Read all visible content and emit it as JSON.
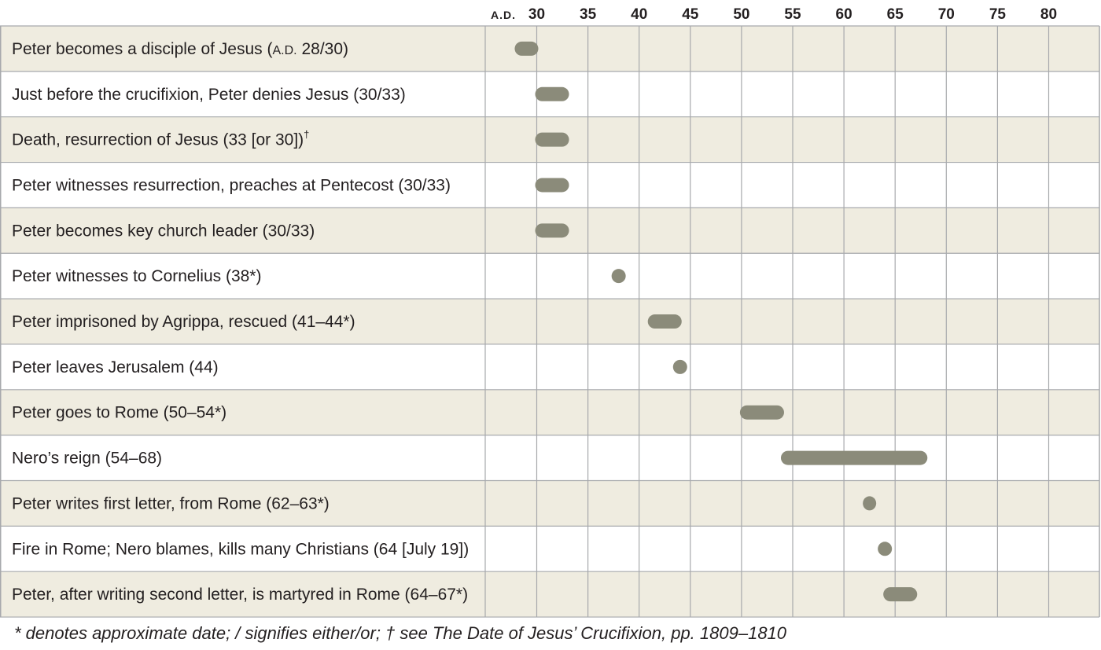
{
  "colors": {
    "shaded_row": "#efece0",
    "plain_row": "#ffffff",
    "grid": "#a7a9ac",
    "bar": "#8b8b7a",
    "text": "#231f20"
  },
  "chart_data": {
    "type": "timeline",
    "era_label": "A.D.",
    "x_ticks": [
      30,
      35,
      40,
      45,
      50,
      55,
      60,
      65,
      70,
      75,
      80
    ],
    "x_range": [
      25,
      82.5
    ],
    "rows": [
      {
        "label": "Peter becomes a disciple of Jesus (",
        "era": "A.D.",
        "label_after": " 28/30)",
        "start": 28,
        "end": 30
      },
      {
        "label": "Just before the crucifixion, Peter denies Jesus (30/33)",
        "start": 30,
        "end": 33
      },
      {
        "label": "Death, resurrection of Jesus (33 [or 30])",
        "sup": "†",
        "start": 30,
        "end": 33
      },
      {
        "label": "Peter witnesses resurrection, preaches at Pentecost (30/33)",
        "start": 30,
        "end": 33
      },
      {
        "label": "Peter becomes key church leader (30/33)",
        "start": 30,
        "end": 33
      },
      {
        "label": "Peter witnesses to Cornelius (38*)",
        "start": 38,
        "end": 38
      },
      {
        "label": "Peter imprisoned by Agrippa, rescued (41–44*)",
        "start": 41,
        "end": 44
      },
      {
        "label": "Peter leaves Jerusalem (44)",
        "start": 44,
        "end": 44
      },
      {
        "label": "Peter goes to Rome (50–54*)",
        "start": 50,
        "end": 54
      },
      {
        "label": "Nero’s reign (54–68)",
        "start": 54,
        "end": 68
      },
      {
        "label": "Peter writes first letter, from Rome (62–63*)",
        "start": 62,
        "end": 63
      },
      {
        "label": "Fire in Rome; Nero blames, kills many Christians (64 [July 19])",
        "start": 64,
        "end": 64
      },
      {
        "label": "Peter, after writing second letter, is martyred in Rome (64–67*)",
        "start": 64,
        "end": 67
      }
    ],
    "footnote": "* denotes approximate date; / signifies either/or; † see The Date of Jesus’ Crucifixion, pp. 1809–1810"
  }
}
